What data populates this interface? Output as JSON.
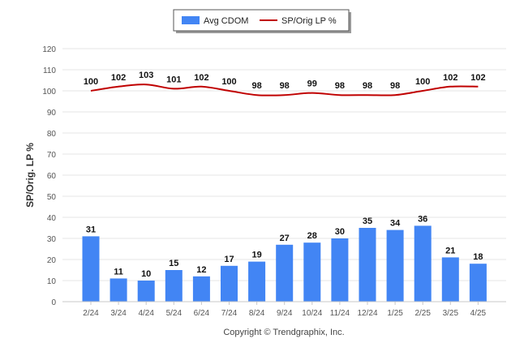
{
  "chart_data": {
    "type": "bar",
    "categories": [
      "2/24",
      "3/24",
      "4/24",
      "5/24",
      "6/24",
      "7/24",
      "8/24",
      "9/24",
      "10/24",
      "11/24",
      "12/24",
      "1/25",
      "2/25",
      "3/25",
      "4/25"
    ],
    "series": [
      {
        "name": "Avg CDOM",
        "type": "bar",
        "color": "#4285f4",
        "values": [
          31,
          11,
          10,
          15,
          12,
          17,
          19,
          27,
          28,
          30,
          35,
          34,
          36,
          21,
          18
        ]
      },
      {
        "name": "SP/Orig LP %",
        "type": "line",
        "color": "#c00000",
        "values": [
          100,
          102,
          103,
          101,
          102,
          100,
          98,
          98,
          99,
          98,
          98,
          98,
          100,
          102,
          102
        ]
      }
    ],
    "title": "",
    "xlabel": "",
    "ylabel": "SP/Orig. LP %",
    "ylim": [
      0,
      120
    ],
    "yticks": [
      0,
      10,
      20,
      30,
      40,
      50,
      60,
      70,
      80,
      90,
      100,
      110,
      120
    ],
    "grid": true,
    "legend_position": "top-center",
    "data_labels": true
  },
  "footer": {
    "copyright": "Copyright © Trendgraphix, Inc."
  }
}
